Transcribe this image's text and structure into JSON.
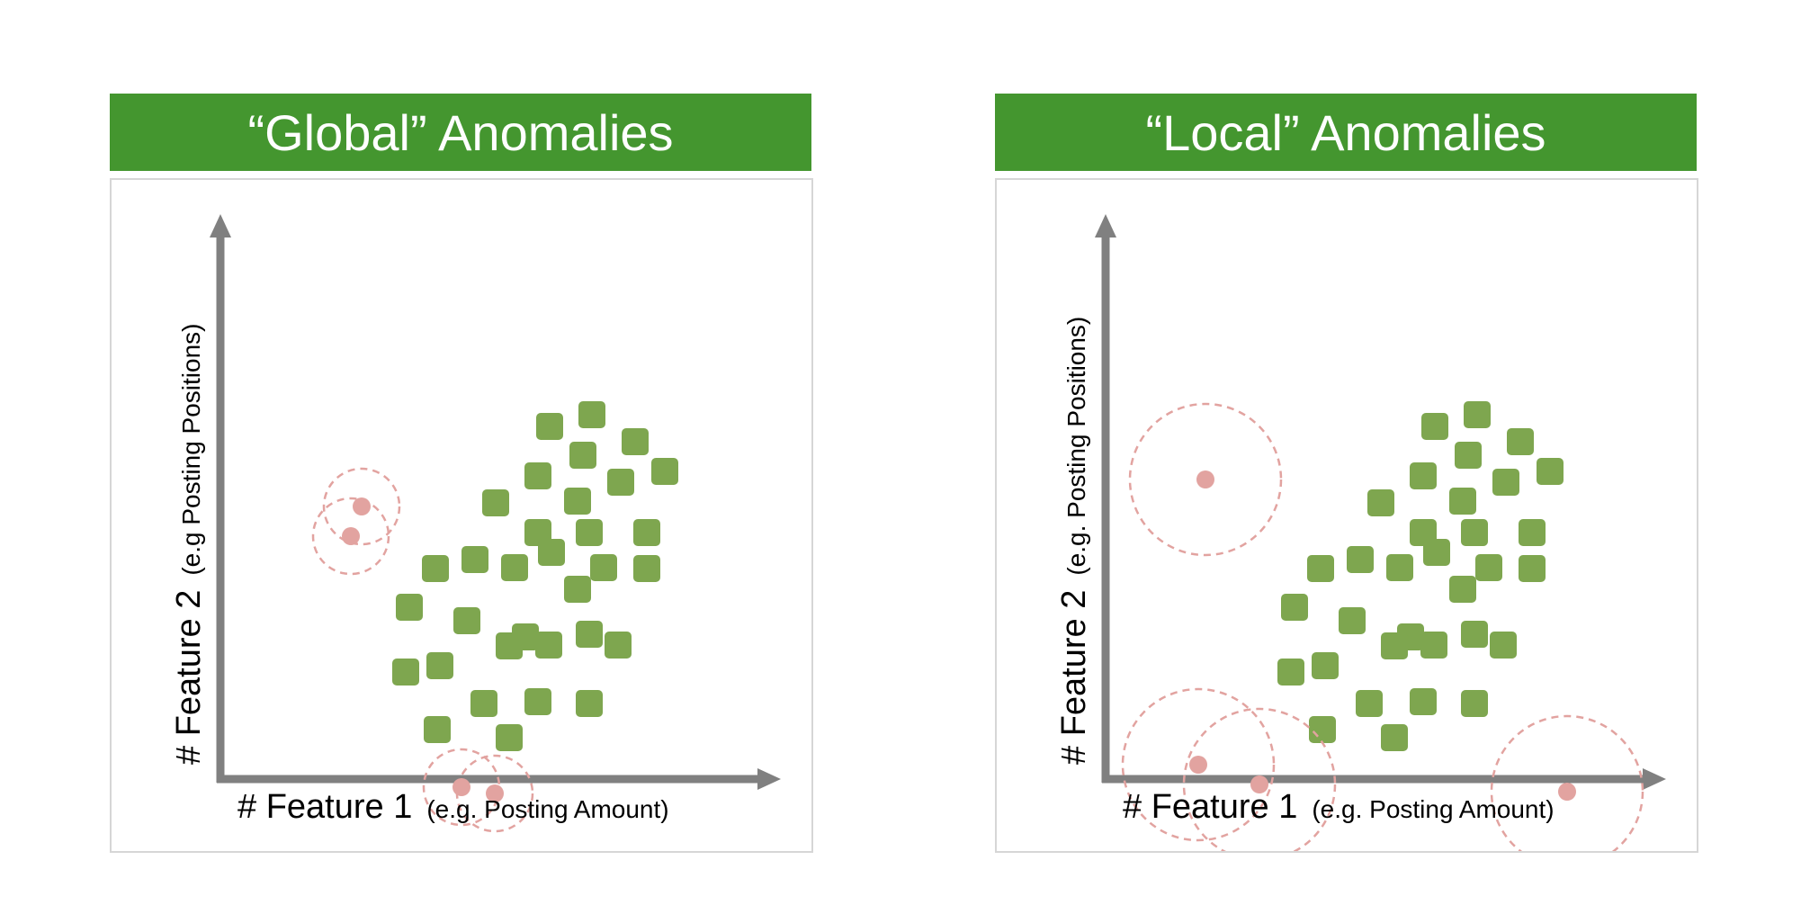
{
  "colors": {
    "header_bg": "#44962f",
    "cluster": "#7ea64f",
    "anomaly": "#e2a3a0",
    "axis": "#808080"
  },
  "panels": [
    {
      "title": "“Global” Anomalies",
      "x_axis": {
        "main": "# Feature 1",
        "sub": "(e.g. Posting Amount)"
      },
      "y_axis": {
        "main": "# Feature 2",
        "sub": "(e.g Posting Positions)"
      }
    },
    {
      "title": "“Local” Anomalies",
      "x_axis": {
        "main": "# Feature 1",
        "sub": "(e.g. Posting Amount)"
      },
      "y_axis": {
        "main": "# Feature 2",
        "sub": "(e.g. Posting Positions)"
      }
    }
  ]
}
